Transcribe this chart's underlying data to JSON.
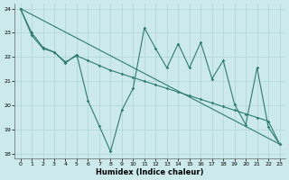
{
  "xlabel": "Humidex (Indice chaleur)",
  "bg_color": "#cce9ec",
  "line_color": "#2e7d6e",
  "grid_color": "#aed4d8",
  "xlim": [
    -0.5,
    23.5
  ],
  "ylim": [
    17.8,
    24.2
  ],
  "xticks": [
    0,
    1,
    2,
    3,
    4,
    5,
    6,
    7,
    8,
    9,
    10,
    11,
    12,
    13,
    14,
    15,
    16,
    17,
    18,
    19,
    20,
    21,
    22,
    23
  ],
  "yticks": [
    18,
    19,
    20,
    21,
    22,
    23,
    24
  ],
  "series_zigzag": {
    "x": [
      0,
      1,
      2,
      3,
      4,
      5,
      6,
      7,
      8,
      9,
      10,
      11,
      12,
      13,
      14,
      15,
      16,
      17,
      18,
      19,
      20,
      21,
      22,
      23
    ],
    "y": [
      24,
      23.0,
      22.4,
      22.2,
      21.75,
      22.1,
      20.2,
      19.15,
      18.1,
      19.8,
      20.7,
      23.2,
      22.35,
      21.55,
      22.55,
      21.55,
      22.6,
      21.1,
      21.85,
      20.05,
      19.2,
      21.55,
      19.1,
      18.4
    ]
  },
  "series_smooth": {
    "x": [
      0,
      1,
      2,
      3,
      4,
      5,
      6,
      7,
      8,
      9,
      10,
      11,
      12,
      13,
      14,
      15,
      16,
      17,
      18,
      19,
      20,
      21,
      22,
      23
    ],
    "y": [
      24,
      22.9,
      22.35,
      22.2,
      21.8,
      22.05,
      21.85,
      21.65,
      21.45,
      21.3,
      21.15,
      21.0,
      20.85,
      20.7,
      20.55,
      20.4,
      20.25,
      20.1,
      19.95,
      19.8,
      19.65,
      19.5,
      19.35,
      18.4
    ]
  },
  "series_line": {
    "x": [
      0,
      23
    ],
    "y": [
      24,
      18.4
    ]
  }
}
